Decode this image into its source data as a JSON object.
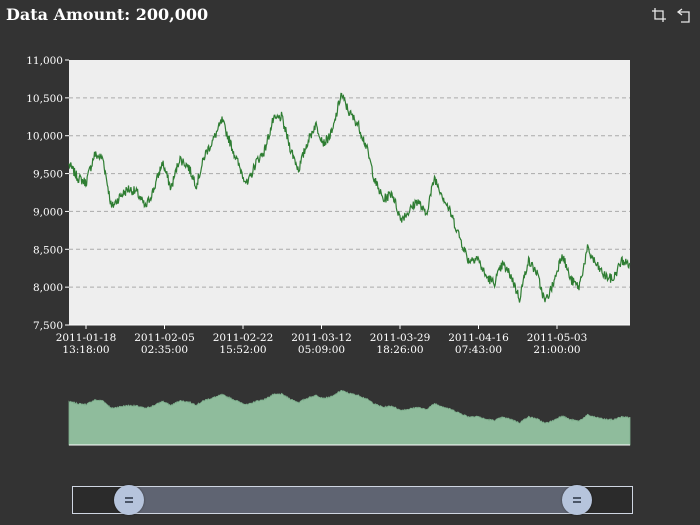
{
  "header": {
    "title": "Data Amount: 200,000"
  },
  "toolbox": [
    {
      "name": "zoom-icon",
      "label": "Data zoom"
    },
    {
      "name": "zoom-reset-icon",
      "label": "Zoom reset"
    }
  ],
  "colors": {
    "background": "#333333",
    "plot_background": "#eeeeee",
    "line": "#2e7d32",
    "overview_fill": "#8fbc9c",
    "slider_fill": "#5f6472",
    "handle": "#b6c4dc"
  },
  "zoom": {
    "start": 0.0,
    "end": 1.0
  },
  "chart_data": {
    "type": "line",
    "title": "Data Amount: 200,000",
    "xlabel": "",
    "ylabel": "",
    "ylim": [
      7500,
      11000
    ],
    "y_ticks": [
      7500,
      8000,
      8500,
      9000,
      9500,
      10000,
      10500,
      11000
    ],
    "y_tick_labels": [
      "7,500",
      "8,000",
      "8,500",
      "9,000",
      "9,500",
      "10,000",
      "10,500",
      "11,000"
    ],
    "grid": true,
    "x_tick_labels": [
      [
        "2011-01-18",
        "13:18:00"
      ],
      [
        "2011-02-05",
        "02:35:00"
      ],
      [
        "2011-02-22",
        "15:52:00"
      ],
      [
        "2011-03-12",
        "05:09:00"
      ],
      [
        "2011-03-29",
        "18:26:00"
      ],
      [
        "2011-04-16",
        "07:43:00"
      ],
      [
        "2011-05-03",
        "21:00:00"
      ]
    ],
    "x_start": "2011-01-11 00:00:00",
    "x_end": "2011-05-23 00:00:00",
    "series": [
      {
        "values": [
          [
            "2011-01-11",
            9620
          ],
          [
            "2011-01-13",
            9450
          ],
          [
            "2011-01-15",
            9380
          ],
          [
            "2011-01-17",
            9750
          ],
          [
            "2011-01-19",
            9700
          ],
          [
            "2011-01-21",
            9050
          ],
          [
            "2011-01-23",
            9200
          ],
          [
            "2011-01-25",
            9300
          ],
          [
            "2011-01-27",
            9250
          ],
          [
            "2011-01-29",
            9050
          ],
          [
            "2011-01-31",
            9300
          ],
          [
            "2011-02-02",
            9650
          ],
          [
            "2011-02-04",
            9300
          ],
          [
            "2011-02-06",
            9700
          ],
          [
            "2011-02-08",
            9600
          ],
          [
            "2011-02-10",
            9350
          ],
          [
            "2011-02-12",
            9750
          ],
          [
            "2011-02-14",
            9950
          ],
          [
            "2011-02-16",
            10200
          ],
          [
            "2011-02-18",
            9900
          ],
          [
            "2011-02-20",
            9600
          ],
          [
            "2011-02-22",
            9350
          ],
          [
            "2011-02-24",
            9650
          ],
          [
            "2011-02-26",
            9800
          ],
          [
            "2011-02-28",
            10200
          ],
          [
            "2011-03-02",
            10250
          ],
          [
            "2011-03-04",
            9850
          ],
          [
            "2011-03-06",
            9550
          ],
          [
            "2011-03-08",
            9900
          ],
          [
            "2011-03-10",
            10150
          ],
          [
            "2011-03-12",
            9900
          ],
          [
            "2011-03-14",
            10050
          ],
          [
            "2011-03-16",
            10550
          ],
          [
            "2011-03-18",
            10300
          ],
          [
            "2011-03-20",
            10150
          ],
          [
            "2011-03-22",
            9850
          ],
          [
            "2011-03-24",
            9400
          ],
          [
            "2011-03-26",
            9150
          ],
          [
            "2011-03-28",
            9250
          ],
          [
            "2011-03-30",
            8900
          ],
          [
            "2011-04-01",
            9000
          ],
          [
            "2011-04-03",
            9150
          ],
          [
            "2011-04-05",
            8950
          ],
          [
            "2011-04-07",
            9450
          ],
          [
            "2011-04-09",
            9200
          ],
          [
            "2011-04-11",
            8950
          ],
          [
            "2011-04-13",
            8650
          ],
          [
            "2011-04-15",
            8350
          ],
          [
            "2011-04-17",
            8400
          ],
          [
            "2011-04-19",
            8150
          ],
          [
            "2011-04-21",
            8050
          ],
          [
            "2011-04-23",
            8300
          ],
          [
            "2011-04-25",
            8150
          ],
          [
            "2011-04-27",
            7850
          ],
          [
            "2011-04-29",
            8350
          ],
          [
            "2011-05-01",
            8200
          ],
          [
            "2011-05-03",
            7800
          ],
          [
            "2011-05-05",
            8050
          ],
          [
            "2011-05-07",
            8450
          ],
          [
            "2011-05-09",
            8100
          ],
          [
            "2011-05-11",
            8000
          ],
          [
            "2011-05-13",
            8500
          ],
          [
            "2011-05-15",
            8300
          ],
          [
            "2011-05-17",
            8150
          ],
          [
            "2011-05-19",
            8100
          ],
          [
            "2011-05-21",
            8350
          ],
          [
            "2011-05-23",
            8300
          ]
        ]
      }
    ]
  }
}
